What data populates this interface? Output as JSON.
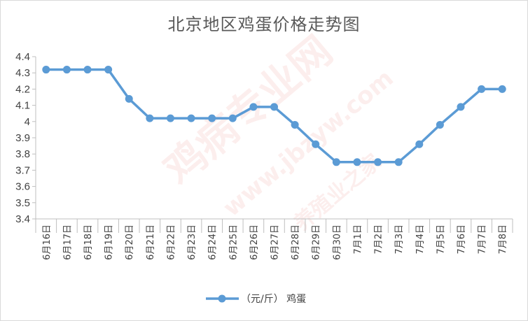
{
  "chart_data": {
    "type": "line",
    "title": "北京地区鸡蛋价格走势图",
    "categories": [
      "6月16日",
      "6月17日",
      "6月18日",
      "6月19日",
      "6月20日",
      "6月21日",
      "6月22日",
      "6月23日",
      "6月24日",
      "6月25日",
      "6月26日",
      "6月27日",
      "6月28日",
      "6月29日",
      "6月30日",
      "7月1日",
      "7月2日",
      "7月3日",
      "7月4日",
      "7月5日",
      "7月6日",
      "7月7日",
      "7月8日"
    ],
    "series": [
      {
        "name": "（元/斤） 鸡蛋",
        "values": [
          4.32,
          4.32,
          4.32,
          4.32,
          4.14,
          4.02,
          4.02,
          4.02,
          4.02,
          4.02,
          4.09,
          4.09,
          3.98,
          3.86,
          3.75,
          3.75,
          3.75,
          3.75,
          3.86,
          3.98,
          4.09,
          4.2,
          4.2
        ]
      }
    ],
    "y_ticks": [
      "3.4",
      "3.5",
      "3.6",
      "3.7",
      "3.8",
      "3.9",
      "4",
      "4.1",
      "4.2",
      "4.3",
      "4.4"
    ],
    "ylim": [
      3.4,
      4.4
    ],
    "grid": false,
    "legend_position": "bottom",
    "line_color": "#5b9bd5",
    "xlabel": "",
    "ylabel": ""
  },
  "watermark": {
    "text_cn": "鸡病专业网",
    "text_url": "www.jbzyw.com",
    "text_slogan": "养殖业之家"
  }
}
